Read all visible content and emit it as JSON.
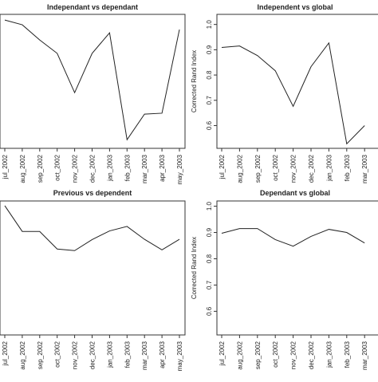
{
  "chart_data": [
    {
      "type": "line",
      "title": "Independant vs dependant",
      "categories": [
        "jul_2002",
        "aug_2002",
        "sep_2002",
        "oct_2002",
        "nov_2002",
        "dec_2002",
        "jan_2003",
        "feb_2003",
        "mar_2003",
        "apr_2003",
        "may_2003"
      ],
      "values": [
        0.981,
        0.965,
        0.914,
        0.869,
        0.737,
        0.869,
        0.938,
        0.579,
        0.665,
        0.668,
        0.949
      ],
      "color": "#222222",
      "ylim": [
        0.55,
        1.0
      ]
    },
    {
      "type": "line",
      "title": "Independent vs global",
      "ylabel": "Corrected Rand Index",
      "categories": [
        "jul_2002",
        "aug_2002",
        "sep_2002",
        "oct_2002",
        "nov_2002",
        "dec_2002",
        "jan_2003",
        "feb_2003",
        "mar_2003"
      ],
      "values": [
        0.909,
        0.915,
        0.877,
        0.817,
        0.676,
        0.833,
        0.927,
        0.528,
        0.6
      ],
      "color": "#222222",
      "ylim": [
        0.51,
        1.04
      ],
      "yticks": [
        0.6,
        0.7,
        0.8,
        0.9,
        {
          "value": 1,
          "label": "1.0"
        }
      ]
    },
    {
      "type": "line",
      "title": "Previous vs dependent",
      "categories": [
        "jul_2002",
        "aug_2002",
        "sep_2002",
        "oct_2002",
        "nov_2002",
        "dec_2002",
        "jan_2003",
        "feb_2003",
        "mar_2003",
        "apr_2003",
        "may_2003"
      ],
      "values": [
        1.002,
        0.904,
        0.904,
        0.837,
        0.831,
        0.873,
        0.906,
        0.923,
        0.874,
        0.834,
        0.874
      ],
      "color": "#222222",
      "ylim": [
        0.51,
        1.02
      ]
    },
    {
      "type": "line",
      "title": "Dependant vs global",
      "ylabel": "Corrected Rand Index",
      "categories": [
        "jul_2002",
        "aug_2002",
        "sep_2002",
        "oct_2002",
        "nov_2002",
        "dec_2002",
        "jan_2003",
        "feb_2003",
        "mar_2003"
      ],
      "values": [
        0.897,
        0.915,
        0.915,
        0.873,
        0.848,
        0.885,
        0.912,
        0.9,
        0.86
      ],
      "color": "#222222",
      "ylim": [
        0.51,
        1.02
      ],
      "yticks": [
        0.6,
        0.7,
        0.8,
        0.9,
        {
          "value": 1,
          "label": "1.0"
        }
      ]
    }
  ]
}
